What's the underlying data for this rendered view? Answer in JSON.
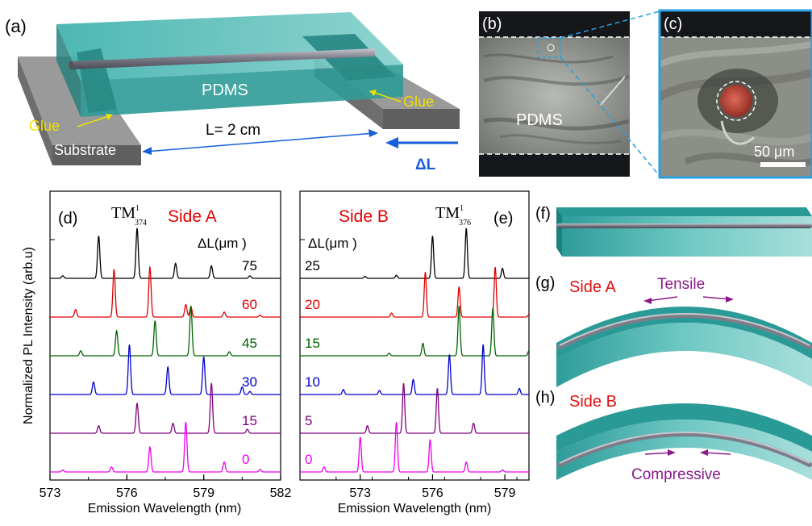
{
  "panels": {
    "a": {
      "tag": "(a)",
      "pdms": "PDMS",
      "glue_left": "Glue",
      "glue_right": "Glue",
      "length": "L= 2 cm",
      "substrate": "Substrate",
      "delta_l": "ΔL"
    },
    "b": {
      "tag": "(b)",
      "pdms": "PDMS"
    },
    "c": {
      "tag": "(c)",
      "scale": "50 μm"
    },
    "f": {
      "tag": "(f)"
    },
    "g": {
      "tag": "(g)",
      "side": "Side A",
      "strain": "Tensile"
    },
    "h": {
      "tag": "(h)",
      "side": "Side B",
      "strain": "Compressive"
    }
  },
  "colors": {
    "pdms": "#3cb4b0",
    "fiber": "#8a8a96",
    "highlight": "#2a9fe0",
    "side": "#e01010",
    "strain": "#8a1a8a",
    "glue": "#f0e000",
    "delta": "#1560d8"
  },
  "chart_data": [
    {
      "type": "line",
      "panel_tag": "(d)",
      "side_label": "Side A",
      "mode_label": "TM",
      "mode_sup": "1",
      "mode_sub": "374",
      "legend_title": "ΔL(μm )",
      "xlabel": "Emission Wavelength (nm)",
      "ylabel": "Normalized PL Intensity (arb.u)",
      "xlim": [
        573,
        582
      ],
      "xticks": [
        573,
        576,
        579,
        582
      ],
      "series": [
        {
          "name": "75",
          "color": "#000000",
          "peaks": [
            [
              573.5,
              0.05
            ],
            [
              574.9,
              0.85
            ],
            [
              576.4,
              1.0
            ],
            [
              577.9,
              0.3
            ],
            [
              579.3,
              0.25
            ],
            [
              580.8,
              0.05
            ]
          ]
        },
        {
          "name": "60",
          "color": "#e00000",
          "peaks": [
            [
              574.0,
              0.15
            ],
            [
              575.5,
              0.95
            ],
            [
              576.9,
              1.0
            ],
            [
              578.3,
              0.25
            ],
            [
              578.5,
              0.2
            ],
            [
              579.8,
              0.1
            ],
            [
              581.2,
              0.04
            ]
          ]
        },
        {
          "name": "45",
          "color": "#006400",
          "peaks": [
            [
              574.2,
              0.1
            ],
            [
              575.6,
              0.5
            ],
            [
              577.1,
              0.7
            ],
            [
              578.5,
              1.0
            ],
            [
              580.0,
              0.08
            ]
          ]
        },
        {
          "name": "30",
          "color": "#0000d0",
          "peaks": [
            [
              574.7,
              0.25
            ],
            [
              576.1,
              1.0
            ],
            [
              577.6,
              0.55
            ],
            [
              579.0,
              0.75
            ],
            [
              580.5,
              0.15
            ],
            [
              580.8,
              0.06
            ]
          ]
        },
        {
          "name": "15",
          "color": "#800080",
          "peaks": [
            [
              574.9,
              0.15
            ],
            [
              576.4,
              0.6
            ],
            [
              577.8,
              0.2
            ],
            [
              579.3,
              1.0
            ],
            [
              580.7,
              0.08
            ]
          ]
        },
        {
          "name": "0",
          "color": "#f000f0",
          "peaks": [
            [
              573.5,
              0.04
            ],
            [
              575.4,
              0.1
            ],
            [
              576.9,
              0.5
            ],
            [
              578.3,
              1.0
            ],
            [
              579.8,
              0.2
            ],
            [
              581.2,
              0.05
            ]
          ]
        }
      ]
    },
    {
      "type": "line",
      "panel_tag": "(e)",
      "side_label": "Side B",
      "mode_label": "TM",
      "mode_sup": "1",
      "mode_sub": "376",
      "legend_title": "ΔL(μm )",
      "xlabel": "Emission Wavelength (nm)",
      "ylabel": "",
      "xlim": [
        570.5,
        580
      ],
      "xticks": [
        573,
        576,
        579
      ],
      "series": [
        {
          "name": "25",
          "color": "#000000",
          "peaks": [
            [
              573.2,
              0.04
            ],
            [
              574.5,
              0.06
            ],
            [
              576.0,
              0.85
            ],
            [
              577.4,
              1.0
            ],
            [
              578.9,
              0.2
            ]
          ]
        },
        {
          "name": "20",
          "color": "#e00000",
          "peaks": [
            [
              574.3,
              0.08
            ],
            [
              575.7,
              0.9
            ],
            [
              577.1,
              0.6
            ],
            [
              578.6,
              1.0
            ],
            [
              580.0,
              0.05
            ]
          ]
        },
        {
          "name": "15",
          "color": "#006400",
          "peaks": [
            [
              574.2,
              0.05
            ],
            [
              575.6,
              0.25
            ],
            [
              577.1,
              1.0
            ],
            [
              578.5,
              0.95
            ],
            [
              580.0,
              0.1
            ]
          ]
        },
        {
          "name": "10",
          "color": "#0000d0",
          "peaks": [
            [
              572.3,
              0.1
            ],
            [
              573.8,
              0.08
            ],
            [
              575.2,
              0.3
            ],
            [
              576.7,
              0.8
            ],
            [
              578.1,
              1.0
            ],
            [
              579.6,
              0.12
            ]
          ]
        },
        {
          "name": "5",
          "color": "#800080",
          "peaks": [
            [
              573.3,
              0.15
            ],
            [
              574.8,
              1.0
            ],
            [
              576.2,
              0.9
            ],
            [
              577.7,
              0.2
            ]
          ]
        },
        {
          "name": "0",
          "color": "#f000f0",
          "peaks": [
            [
              571.5,
              0.1
            ],
            [
              573.0,
              0.7
            ],
            [
              574.5,
              1.0
            ],
            [
              575.9,
              0.65
            ],
            [
              577.4,
              0.2
            ],
            [
              578.9,
              0.04
            ]
          ]
        }
      ]
    }
  ]
}
